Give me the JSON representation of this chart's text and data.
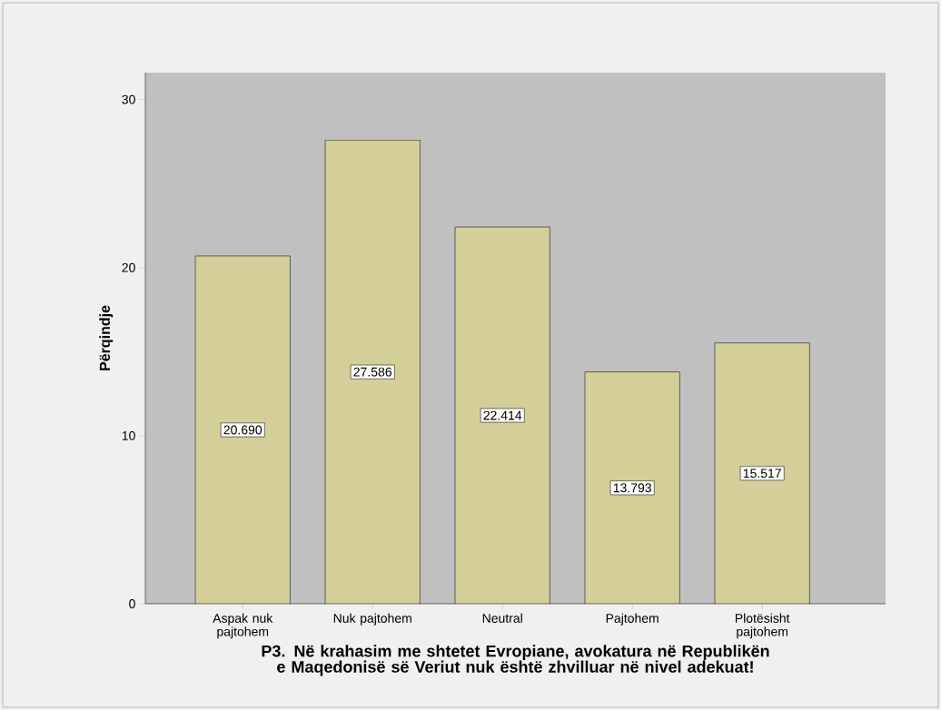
{
  "chart_data": {
    "type": "bar",
    "xlabel": "P3. Në krahasim me shtetet Evropiane, avokatura në Republikën e Maqedonisë së Veriut nuk është zhvilluar në nivel adekuat!",
    "ylabel": "Përqindje",
    "categories": [
      "Aspak nuk pajtohem",
      "Nuk pajtohem",
      "Neutral",
      "Pajtohem",
      "Plotësisht pajtohem"
    ],
    "values": [
      20.69,
      27.586,
      22.414,
      13.793,
      15.517
    ],
    "value_labels": [
      "20.690",
      "27.586",
      "22.414",
      "13.793",
      "15.517"
    ],
    "color": "#d4cf98",
    "ylim": [
      0,
      31.6
    ],
    "yticks": [
      0,
      10,
      20,
      30
    ]
  }
}
